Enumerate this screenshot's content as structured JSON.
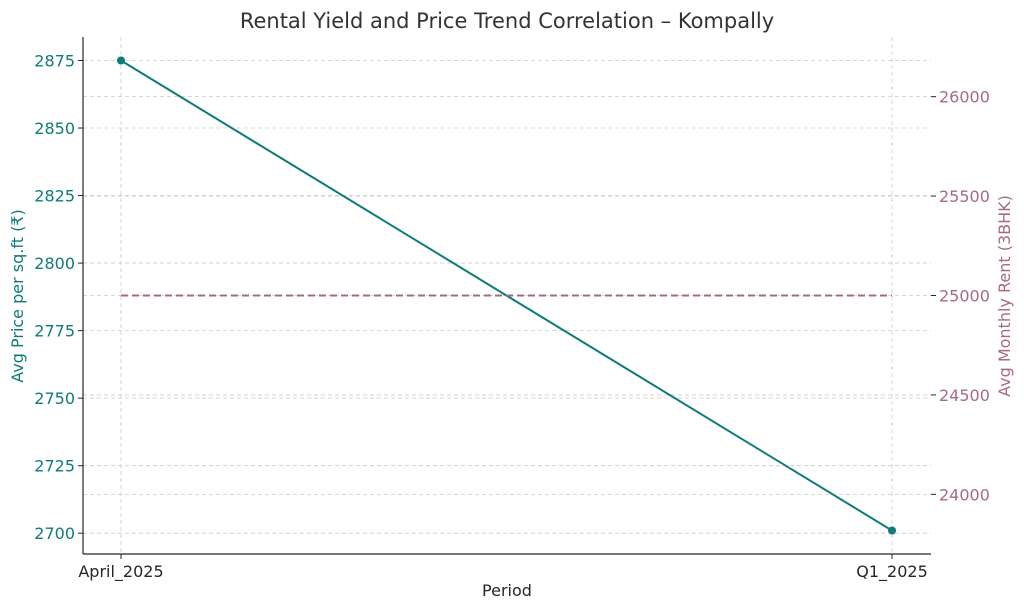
{
  "chart_data": {
    "type": "line",
    "title": "Rental Yield and Price Trend Correlation – Kompally",
    "xlabel": "Period",
    "ylabel_left": "Avg Price per sq.ft (₹)",
    "ylabel_right": "Avg Monthly Rent (3BHK)",
    "categories": [
      "April_2025",
      "Q1_2025"
    ],
    "series": [
      {
        "name": "",
        "axis": "left",
        "values": [
          2875,
          2701
        ],
        "color": "#0f7b78",
        "style": "solid",
        "markers": true
      },
      {
        "name": "",
        "axis": "right",
        "values": [
          25000,
          25000
        ],
        "color": "#a66b80",
        "style": "dashed",
        "markers": false
      }
    ],
    "ylim_left": [
      2692.3,
      2883.7
    ],
    "ylim_right": [
      23700,
      26300
    ],
    "yticks_left": [
      2700,
      2725,
      2750,
      2775,
      2800,
      2825,
      2850,
      2875
    ],
    "yticks_right": [
      24000,
      24500,
      25000,
      25500,
      26000
    ],
    "grid": true,
    "left_axis_color": "#0f7b78",
    "right_axis_color": "#a66b80"
  }
}
